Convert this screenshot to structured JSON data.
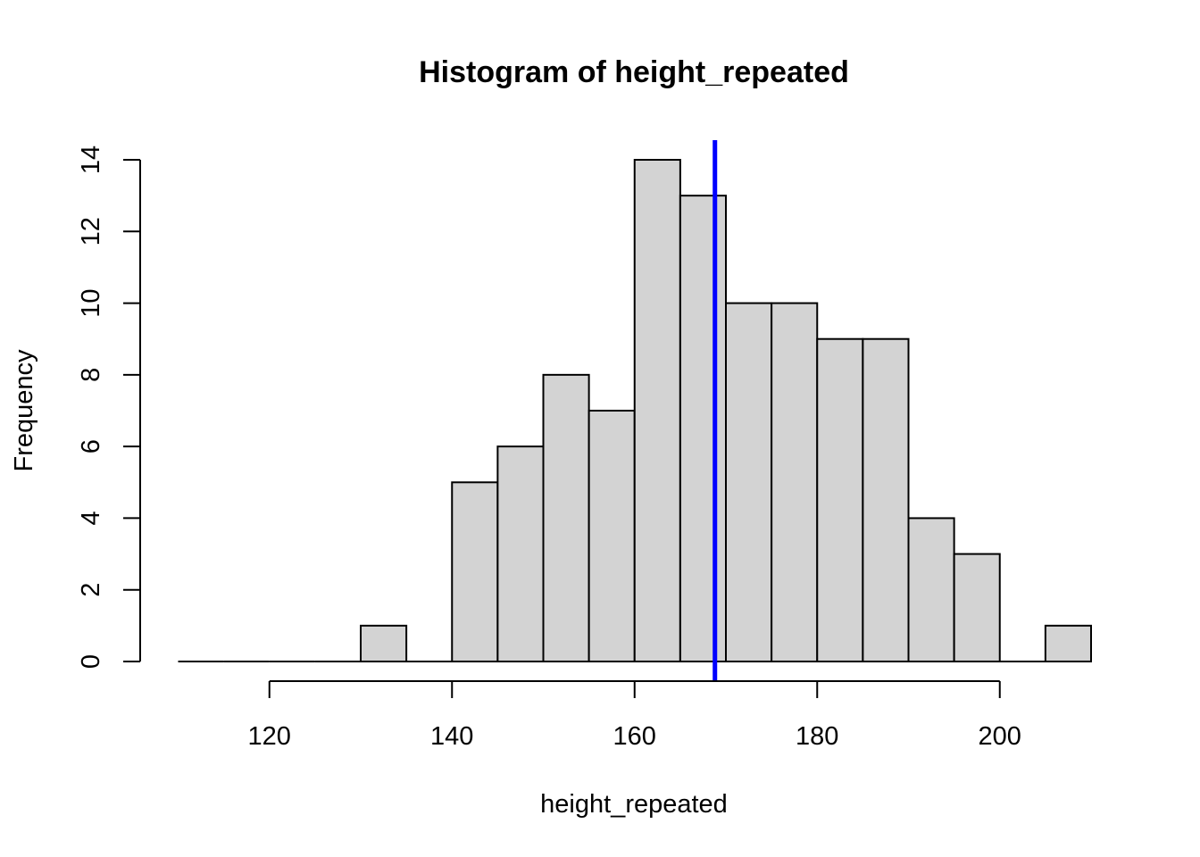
{
  "chart_data": {
    "type": "bar",
    "title": "Histogram of height_repeated",
    "xlabel": "height_repeated",
    "ylabel": "Frequency",
    "bin_width": 5,
    "bins": [
      {
        "from": 110,
        "to": 115,
        "count": 0
      },
      {
        "from": 115,
        "to": 120,
        "count": 0
      },
      {
        "from": 120,
        "to": 125,
        "count": 0
      },
      {
        "from": 125,
        "to": 130,
        "count": 0
      },
      {
        "from": 130,
        "to": 135,
        "count": 1
      },
      {
        "from": 135,
        "to": 140,
        "count": 0
      },
      {
        "from": 140,
        "to": 145,
        "count": 5
      },
      {
        "from": 145,
        "to": 150,
        "count": 6
      },
      {
        "from": 150,
        "to": 155,
        "count": 8
      },
      {
        "from": 155,
        "to": 160,
        "count": 7
      },
      {
        "from": 160,
        "to": 165,
        "count": 14
      },
      {
        "from": 165,
        "to": 170,
        "count": 13
      },
      {
        "from": 170,
        "to": 175,
        "count": 10
      },
      {
        "from": 175,
        "to": 180,
        "count": 10
      },
      {
        "from": 180,
        "to": 185,
        "count": 9
      },
      {
        "from": 185,
        "to": 190,
        "count": 9
      },
      {
        "from": 190,
        "to": 195,
        "count": 4
      },
      {
        "from": 195,
        "to": 200,
        "count": 3
      },
      {
        "from": 200,
        "to": 205,
        "count": 0
      },
      {
        "from": 205,
        "to": 210,
        "count": 1
      }
    ],
    "xlim": [
      110,
      210
    ],
    "ylim": [
      0,
      14
    ],
    "x_ticks": [
      120,
      140,
      160,
      180,
      200
    ],
    "y_ticks": [
      0,
      2,
      4,
      6,
      8,
      10,
      12,
      14
    ],
    "reference_line": {
      "x": 168.8,
      "color": "#0000ff"
    },
    "bar_fill": "#d3d3d3",
    "bar_stroke": "#000000",
    "grid": false,
    "legend": "none"
  }
}
